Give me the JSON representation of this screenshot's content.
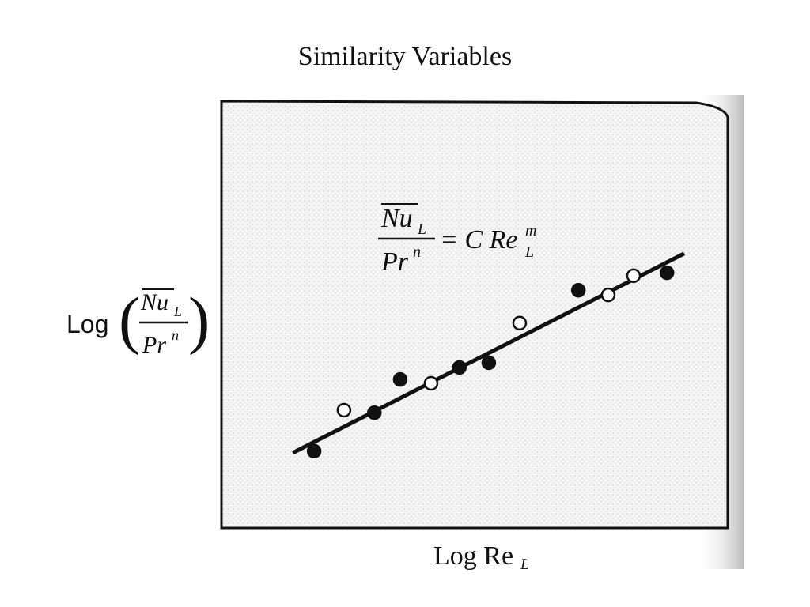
{
  "chart_data": {
    "type": "scatter",
    "title": "Similarity Variables",
    "xlabel": {
      "main": "Log Re",
      "sub": "L"
    },
    "ylabel": {
      "prefix": "Log",
      "numerator": "Nu",
      "numerator_sub": "L",
      "denominator": "Pr",
      "denominator_sup": "n"
    },
    "equation": {
      "numerator": "Nu",
      "numerator_sub": "L",
      "denominator": "Pr",
      "denominator_sup": "n",
      "rhs": "= C Re",
      "rhs_sub": "L",
      "rhs_sup": "m"
    },
    "xlim": [
      0,
      10
    ],
    "ylim": [
      0,
      10
    ],
    "series": [
      {
        "color": "#111111",
        "filled": true,
        "x": [
          1.83,
          3.02,
          3.53,
          4.7,
          5.28,
          7.05,
          8.8
        ],
        "values": [
          1.8,
          2.7,
          3.48,
          3.76,
          3.87,
          5.57,
          5.98
        ]
      },
      {
        "color": "#111111",
        "filled": false,
        "x": [
          2.42,
          4.14,
          5.89,
          7.64,
          8.14
        ],
        "values": [
          2.76,
          3.39,
          4.8,
          5.46,
          5.91
        ]
      }
    ],
    "fit": {
      "color": "#111111",
      "x": [
        1.41,
        9.14
      ],
      "values": [
        1.76,
        6.43
      ]
    }
  }
}
